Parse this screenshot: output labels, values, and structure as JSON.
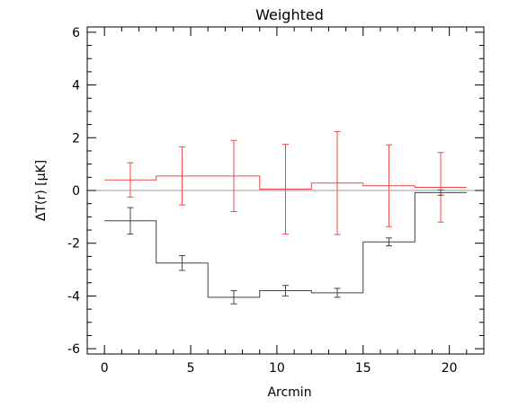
{
  "chart_data": {
    "type": "line",
    "title": "Weighted",
    "xlabel": "Arcmin",
    "ylabel": "ΔT(r) [μK]",
    "xlim": [
      -1,
      22
    ],
    "ylim": [
      -6.2,
      6.2
    ],
    "x_major_ticks": [
      0,
      5,
      10,
      15,
      20
    ],
    "y_major_ticks": [
      -6,
      -4,
      -2,
      0,
      2,
      4,
      6
    ],
    "grid": false,
    "legend": "none",
    "zero_line": 0,
    "bins": [
      {
        "lo": 0,
        "hi": 3
      },
      {
        "lo": 3,
        "hi": 6
      },
      {
        "lo": 6,
        "hi": 9
      },
      {
        "lo": 9,
        "hi": 12
      },
      {
        "lo": 12,
        "hi": 15
      },
      {
        "lo": 15,
        "hi": 18
      },
      {
        "lo": 18,
        "hi": 21
      }
    ],
    "series": [
      {
        "color": "#ef4a4a",
        "style": "step-with-errorbars",
        "x": [
          1.5,
          4.5,
          7.5,
          10.5,
          13.5,
          16.5,
          19.5
        ],
        "values": [
          0.4,
          0.55,
          0.55,
          0.05,
          0.28,
          0.18,
          0.12
        ],
        "errors": [
          0.65,
          1.1,
          1.35,
          1.7,
          1.95,
          1.55,
          1.32
        ]
      },
      {
        "color": "#444444",
        "style": "step-with-errorbars",
        "x": [
          1.5,
          4.5,
          7.5,
          10.5,
          13.5,
          16.5,
          19.5
        ],
        "values": [
          -1.15,
          -2.75,
          -4.05,
          -3.8,
          -3.88,
          -1.95,
          -0.08
        ],
        "errors": [
          0.5,
          0.28,
          0.25,
          0.2,
          0.17,
          0.15,
          0.1
        ]
      }
    ]
  }
}
